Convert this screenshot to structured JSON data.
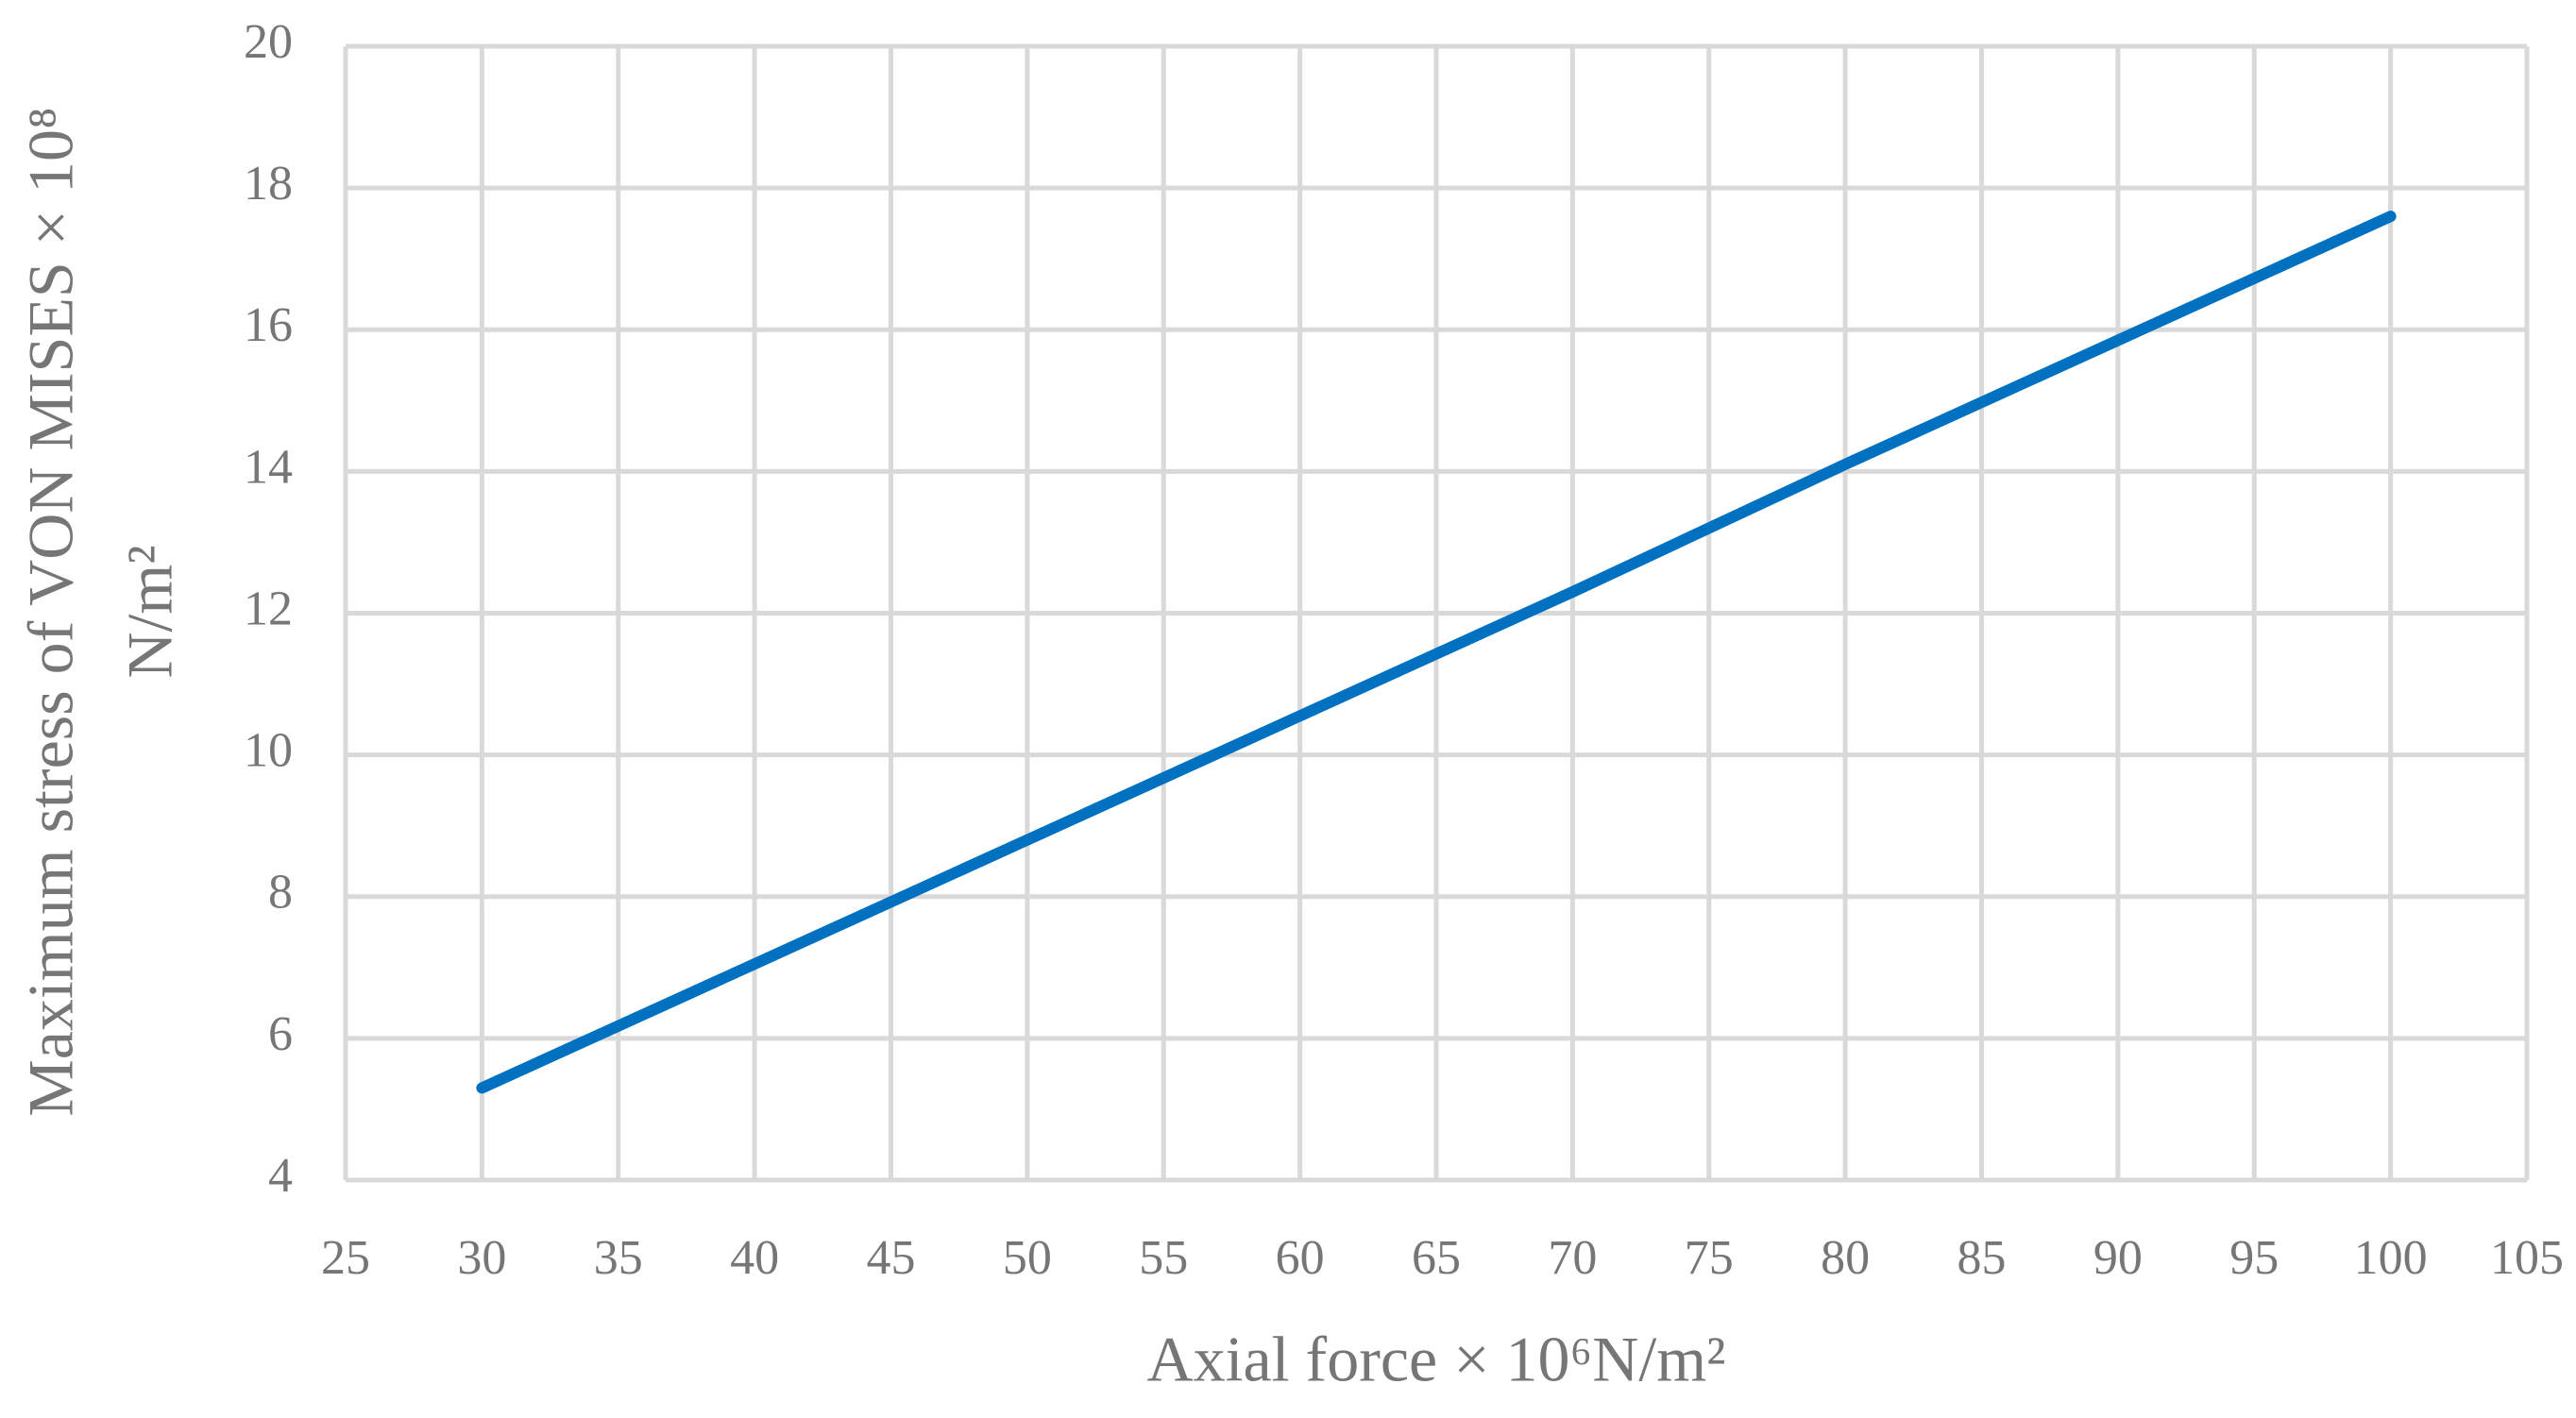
{
  "chart_data": {
    "type": "line",
    "xlabel": "Axial force × 10⁶N/m²",
    "ylabel": [
      "Maximum stress of VON MISES × 10⁸",
      "N/m²"
    ],
    "x": [
      30,
      40,
      50,
      60,
      70,
      80,
      90,
      100
    ],
    "series": [
      {
        "color": "#0070c0",
        "values": [
          5.3,
          7.05,
          8.8,
          10.55,
          12.3,
          14.1,
          15.85,
          17.6
        ]
      }
    ],
    "xlim": [
      25,
      105
    ],
    "xticks": [
      25,
      30,
      35,
      40,
      45,
      50,
      55,
      60,
      65,
      70,
      75,
      80,
      85,
      90,
      95,
      100,
      105
    ],
    "ylim": [
      4,
      20
    ],
    "yticks": [
      4,
      6,
      8,
      10,
      12,
      14,
      16,
      18,
      20
    ],
    "grid": true
  }
}
